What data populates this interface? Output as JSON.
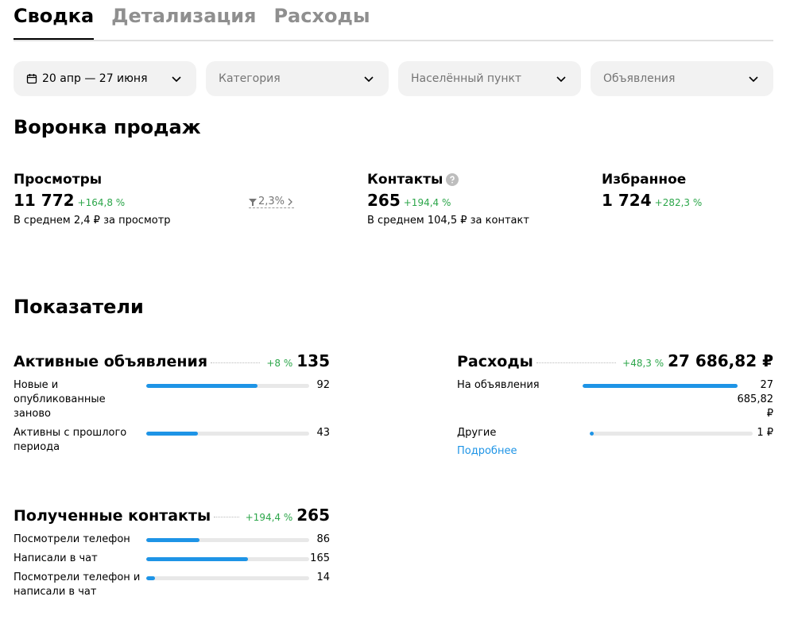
{
  "tabs": [
    "Сводка",
    "Детализация",
    "Расходы"
  ],
  "filters": [
    "20 апр — 27 июня",
    "Категория",
    "Населённый пункт",
    "Объявления"
  ],
  "funnel": {
    "title": "Воронка продаж",
    "items": [
      {
        "name": "Просмотры",
        "value": "11 772",
        "change": "+164,8 %",
        "note": "В среднем 2,4 ₽ за просмотр",
        "conversion": "2,3%"
      },
      {
        "name": "Контакты",
        "value": "265",
        "change": "+194,4 %",
        "note": "В среднем 104,5 ₽ за контакт"
      },
      {
        "name": "Избранное",
        "value": "1 724",
        "change": "+282,3 %"
      }
    ]
  },
  "metrics": {
    "title": "Показатели",
    "blocks": [
      {
        "name": "Активные объявления",
        "change": "+8 %",
        "total": 135,
        "rows": [
          {
            "label": "Новые и опубликованные заново",
            "value": 92
          },
          {
            "label": "Активны с прошлого периода",
            "value": 43
          }
        ]
      },
      {
        "name": "Расходы",
        "change": "+48,3 %",
        "total": 27686.82,
        "total_label": "27 686,82 ₽",
        "rows": [
          {
            "label": "На объявления",
            "value": 27685.82,
            "value_label": "27 685,82 ₽"
          },
          {
            "label": "Другие",
            "value": 1,
            "value_label": "1 ₽"
          }
        ],
        "link": "Подробнее"
      },
      {
        "name": "Полученные контакты",
        "change": "+194,4 %",
        "total": 265,
        "rows": [
          {
            "label": "Посмотрели телефон",
            "value": 86
          },
          {
            "label": "Написали в чат",
            "value": 165
          },
          {
            "label": "Посмотрели телефон и написали в чат",
            "value": 14
          }
        ]
      }
    ]
  }
}
